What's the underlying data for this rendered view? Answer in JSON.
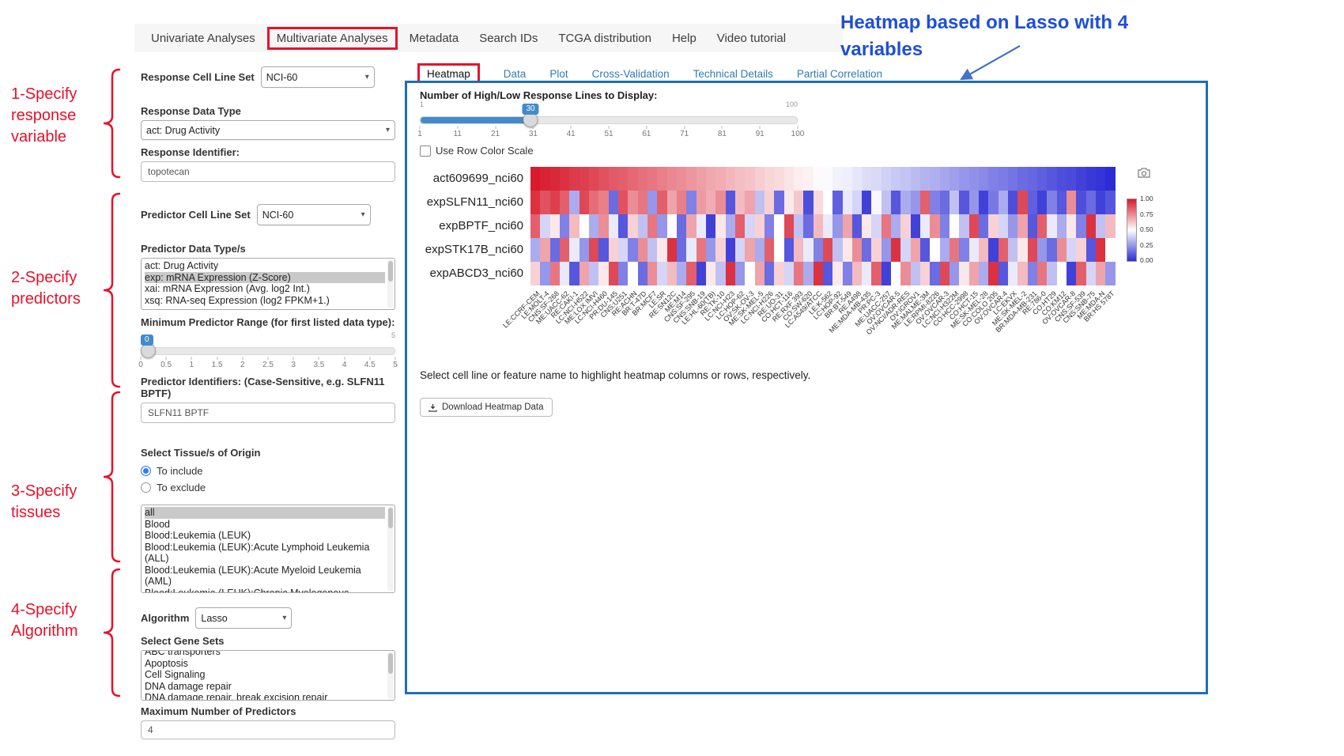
{
  "annotations": {
    "step1": "1-Specify\nresponse\nvariable",
    "step2": "2-Specify\npredictors",
    "step3": "3-Specify\ntissues",
    "step4": "4-Specify\nAlgorithm",
    "heatmap_note": "Heatmap based on Lasso with 4 variables"
  },
  "colors": {
    "annotation_red": "#e8112a",
    "note_blue": "#1d4fd7",
    "panel_border_blue": "#1d6fb8",
    "link_blue": "#337ab7",
    "slider_blue": "#428bca",
    "heatmap_high": "#d71a2c",
    "heatmap_low": "#2c2cd6"
  },
  "nav": {
    "items": [
      {
        "label": "Univariate Analyses",
        "highlighted": false
      },
      {
        "label": "Multivariate Analyses",
        "highlighted": true
      },
      {
        "label": "Metadata",
        "highlighted": false
      },
      {
        "label": "Search IDs",
        "highlighted": false
      },
      {
        "label": "TCGA distribution",
        "highlighted": false
      },
      {
        "label": "Help",
        "highlighted": false
      },
      {
        "label": "Video tutorial",
        "highlighted": false
      }
    ]
  },
  "sidebar": {
    "response_cell_line_set": {
      "label": "Response Cell Line Set",
      "value": "NCI-60"
    },
    "response_data_type": {
      "label": "Response Data Type",
      "value": "act: Drug Activity"
    },
    "response_identifier": {
      "label": "Response Identifier:",
      "value": "topotecan"
    },
    "predictor_cell_line_set": {
      "label": "Predictor Cell Line Set",
      "value": "NCI-60"
    },
    "predictor_data_types": {
      "label": "Predictor Data Type/s",
      "options": [
        "act: Drug Activity",
        "exp: mRNA Expression (Z-Score)",
        "xai: mRNA Expression (Avg. log2 Int.)",
        "xsq: RNA-seq Expression (log2 FPKM+1.)"
      ],
      "selected": "exp: mRNA Expression (Z-Score)"
    },
    "min_predictor_range": {
      "label": "Minimum Predictor Range (for first listed data type):",
      "value": "0",
      "min": "0",
      "max": "5",
      "ticks": [
        "0",
        "0.5",
        "1",
        "1.5",
        "2",
        "2.5",
        "3",
        "3.5",
        "4",
        "4.5",
        "5"
      ]
    },
    "predictor_identifiers": {
      "label": "Predictor Identifiers: (Case-Sensitive, e.g. SLFN11 BPTF)",
      "value": "SLFN11 BPTF"
    },
    "tissue_origin": {
      "label": "Select Tissue/s of Origin",
      "include_label": "To include",
      "exclude_label": "To exclude",
      "mode": "include",
      "options": [
        "all",
        "Blood",
        "Blood:Leukemia (LEUK)",
        "Blood:Leukemia (LEUK):Acute Lymphoid Leukemia (ALL)",
        "Blood:Leukemia (LEUK):Acute Myeloid Leukemia (AML)",
        "Blood:Leukemia (LEUK):Chronic Myelogenous Leukemia (CML)"
      ],
      "selected": "all"
    },
    "algorithm": {
      "label": "Algorithm",
      "value": "Lasso"
    },
    "gene_sets": {
      "label": "Select Gene Sets",
      "options": [
        "ABC transporters",
        "Apoptosis",
        "Cell Signaling",
        "DNA damage repair",
        "DNA damage repair, break excision repair"
      ]
    },
    "max_predictors": {
      "label": "Maximum Number of Predictors",
      "value": "4"
    }
  },
  "main": {
    "tabs": [
      {
        "label": "Heatmap",
        "active": true,
        "highlighted": true
      },
      {
        "label": "Data",
        "active": false,
        "highlighted": false
      },
      {
        "label": "Plot",
        "active": false,
        "highlighted": false
      },
      {
        "label": "Cross-Validation",
        "active": false,
        "highlighted": false
      },
      {
        "label": "Technical Details",
        "active": false,
        "highlighted": false
      },
      {
        "label": "Partial Correlation",
        "active": false,
        "highlighted": false
      }
    ],
    "lines_slider": {
      "label": "Number of High/Low Response Lines to Display:",
      "value": "30",
      "min": "1",
      "max": "100",
      "ticks": [
        "1",
        "11",
        "21",
        "31",
        "41",
        "51",
        "61",
        "71",
        "81",
        "91",
        "100"
      ]
    },
    "row_color_scale": {
      "label": "Use Row Color Scale",
      "checked": false
    },
    "hint": "Select cell line or feature name to highlight heatmap columns or rows, respectively.",
    "download_button": "Download Heatmap Data"
  },
  "chart_data": {
    "type": "heatmap",
    "title": "",
    "value_range": [
      0,
      1
    ],
    "legend_position": "right",
    "colorbar_ticks": [
      "1.00",
      "0.75",
      "0.50",
      "0.25",
      "0.00"
    ],
    "colorscale": {
      "low": "#2c2cd6",
      "mid": "#ffffff",
      "high": "#d71a2c"
    },
    "rows": [
      "act609699_nci60",
      "expSLFN11_nci60",
      "expBPTF_nci60",
      "expSTK17B_nci60",
      "expABCD3_nci60"
    ],
    "columns": [
      "LE:CCRF-CEM",
      "LE:MOLT-4",
      "CNS:SF-268",
      "ME:UACC-62",
      "RE:CAKI-1",
      "LC:NCI-H522",
      "ME:LOX IMVI",
      "LC:NCI-H460",
      "PR:DU-145",
      "CNS:U251",
      "RE:ACHN",
      "BR:T-47D",
      "BR:MCF7",
      "LE:SR",
      "RE:SN12C",
      "ME:M14",
      "CNS:SF-295",
      "CNS:SNB-19",
      "LE:HL-60(TB)",
      "RE:TK-10",
      "LC:NCI-H23",
      "LC:HOP-62",
      "OV:SK-OV-3",
      "ME:SK-MEL-5",
      "LC:NCI-H226",
      "RE:UO-31",
      "CO:HCT-116",
      "RE:RXF 393",
      "CO:SW-620",
      "LC:A549/ATCC",
      "LE:K-562",
      "LC:HOP-92",
      "BR:BT-549",
      "RE:A498",
      "ME:MDA-MB-435",
      "PR:PC-3",
      "ME:UACC-257",
      "OV:OVCAR-5",
      "OV:NCI/ADR-RES",
      "OV:IGROV1",
      "ME:MALME-3M",
      "LE:RPMI-8226",
      "OV:OVCAR-3",
      "LC:NCI-H322M",
      "CO:HCC-2998",
      "CO:HCT-15",
      "ME:SK-MEL-28",
      "CO:COLO 205",
      "OV:OVCAR-4",
      "LC:EKVX",
      "ME:SK-MEL-2",
      "BR:MDA-MB-231",
      "RE:786-0",
      "CO:HT29",
      "CO:KM12",
      "OV:OVCAR-8",
      "CNS:SF-539",
      "CNS:SNB-75",
      "ME:MDA-N",
      "BR:HS 578T"
    ],
    "values": [
      [
        1,
        0.98,
        0.97,
        0.95,
        0.93,
        0.92,
        0.9,
        0.88,
        0.86,
        0.85,
        0.83,
        0.81,
        0.8,
        0.78,
        0.76,
        0.75,
        0.73,
        0.71,
        0.69,
        0.68,
        0.66,
        0.64,
        0.63,
        0.61,
        0.59,
        0.58,
        0.56,
        0.54,
        0.53,
        0.51,
        0.49,
        0.47,
        0.46,
        0.44,
        0.42,
        0.41,
        0.39,
        0.37,
        0.36,
        0.34,
        0.32,
        0.31,
        0.29,
        0.27,
        0.25,
        0.24,
        0.22,
        0.2,
        0.19,
        0.17,
        0.15,
        0.14,
        0.12,
        0.1,
        0.08,
        0.07,
        0.05,
        0.03,
        0.02,
        0
      ],
      [
        0.95,
        0.88,
        0.92,
        0.85,
        0.3,
        0.9,
        0.82,
        0.78,
        0.15,
        0.88,
        0.75,
        0.8,
        0.25,
        0.85,
        0.7,
        0.78,
        0.2,
        0.72,
        0.68,
        0.75,
        0.1,
        0.65,
        0.7,
        0.35,
        0.6,
        0.15,
        0.55,
        0.62,
        0.08,
        0.58,
        0.5,
        0.12,
        0.45,
        0.4,
        0.05,
        0.48,
        0.35,
        0.1,
        0.3,
        0.25,
        0.85,
        0.2,
        0.15,
        0.35,
        0.1,
        0.25,
        0.05,
        0.18,
        0.3,
        0.08,
        0.9,
        0.12,
        0.05,
        0.2,
        0.1,
        0.75,
        0.08,
        0.15,
        0.05,
        0.1
      ],
      [
        0.85,
        0.4,
        0.55,
        0.2,
        0.65,
        0.5,
        0.3,
        0.75,
        0.45,
        0.1,
        0.6,
        0.35,
        0.8,
        0.25,
        0.5,
        0.15,
        0.7,
        0.45,
        0.05,
        0.55,
        0.3,
        0.85,
        0.4,
        0.6,
        0.2,
        0.5,
        0.9,
        0.35,
        0.15,
        0.65,
        0.45,
        0.25,
        0.7,
        0.1,
        0.55,
        0.4,
        0.8,
        0.3,
        0.6,
        0.05,
        0.45,
        0.75,
        0.2,
        0.5,
        0.35,
        0.9,
        0.15,
        0.6,
        0.4,
        0.25,
        0.7,
        0.1,
        0.85,
        0.45,
        0.3,
        0.55,
        0.2,
        0.95,
        0.35,
        0.65
      ],
      [
        0.3,
        0.7,
        0.15,
        0.85,
        0.45,
        0.25,
        0.9,
        0.1,
        0.6,
        0.4,
        0.2,
        0.75,
        0.35,
        0.55,
        0.95,
        0.15,
        0.45,
        0.8,
        0.25,
        0.6,
        0.05,
        0.4,
        0.7,
        0.3,
        0.85,
        0.5,
        0.1,
        0.65,
        0.45,
        0.2,
        0.9,
        0.35,
        0.55,
        0.75,
        0.15,
        0.6,
        0.25,
        0.95,
        0.4,
        0.7,
        0.1,
        0.5,
        0.3,
        0.8,
        0.2,
        0.45,
        0.65,
        0.05,
        0.85,
        0.35,
        0.55,
        0.9,
        0.25,
        0.15,
        0.75,
        0.4,
        0.6,
        0.1,
        0.95,
        0.5
      ],
      [
        0.6,
        0.25,
        0.8,
        0.45,
        0.1,
        0.7,
        0.35,
        0.55,
        0.9,
        0.2,
        0.5,
        0.15,
        0.75,
        0.4,
        0.65,
        0.3,
        0.85,
        0.05,
        0.55,
        0.35,
        0.95,
        0.25,
        0.5,
        0.7,
        0.15,
        0.6,
        0.4,
        0.8,
        0.3,
        0.95,
        0.1,
        0.55,
        0.2,
        0.65,
        0.45,
        0.85,
        0.05,
        0.5,
        0.75,
        0.35,
        0.6,
        0.15,
        0.9,
        0.25,
        0.55,
        0.7,
        0.3,
        0.95,
        0.1,
        0.45,
        0.65,
        0.2,
        0.8,
        0.35,
        0.5,
        0.05,
        0.85,
        0.4,
        0.7,
        0.25
      ]
    ]
  }
}
